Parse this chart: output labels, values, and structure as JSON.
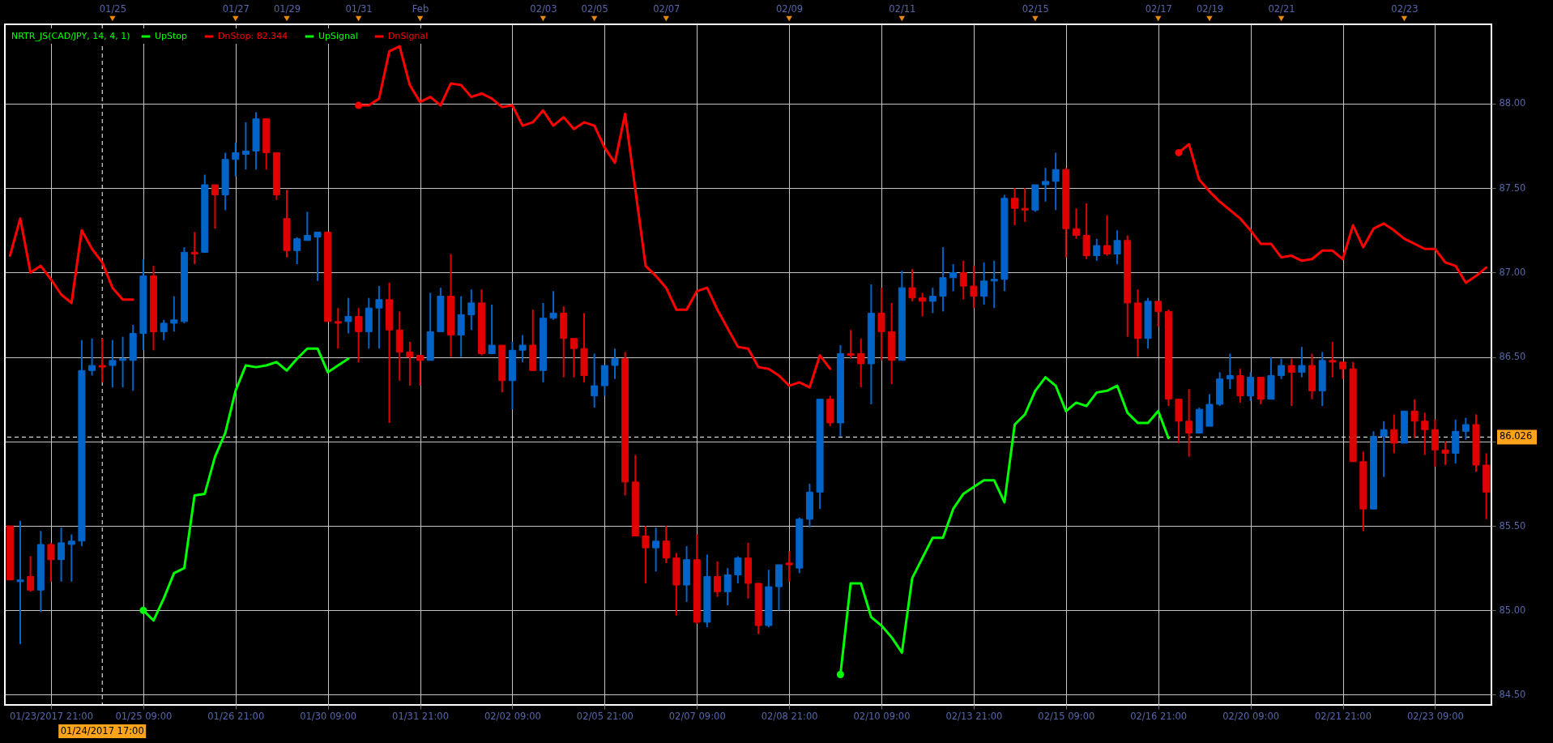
{
  "chart_data": [
    {
      "type": "candlestick",
      "legend_title": "NRTR_JS(CAD/JPY, 14, 4, 1)",
      "legend": "top left",
      "grid": true,
      "categories": [
        null,
        null,
        null,
        null,
        "01/23/2017 21:00",
        null,
        null,
        null,
        null,
        "01/24/2017 17:00",
        null,
        null,
        null,
        "01/25 09:00",
        null,
        null,
        null,
        null,
        null,
        null,
        null,
        null,
        "01/26 21:00",
        null,
        null,
        null,
        null,
        null,
        null,
        null,
        null,
        "01/30 09:00",
        null,
        null,
        null,
        null,
        null,
        null,
        null,
        null,
        "01/31 21:00",
        null,
        null,
        null,
        null,
        null,
        null,
        null,
        null,
        "02/02 09:00",
        null,
        null,
        null,
        null,
        null,
        null,
        null,
        null,
        "02/05 21:00",
        null,
        null,
        null,
        null,
        null,
        null,
        null,
        null,
        "02/07 09:00",
        null,
        null,
        null,
        null,
        null,
        null,
        null,
        null,
        "02/08 21:00",
        null,
        null,
        null,
        null,
        null,
        null,
        null,
        null,
        "02/10 09:00",
        null,
        null,
        null,
        null,
        null,
        null,
        null,
        null,
        "02/13 21:00",
        null,
        null,
        null,
        null,
        null,
        null,
        null,
        null,
        "02/15 09:00",
        null,
        null,
        null,
        null,
        null,
        null,
        null,
        null,
        "02/16 21:00",
        null,
        null,
        null,
        null,
        null,
        null,
        null,
        null,
        "02/20 09:00",
        null,
        null,
        null,
        null,
        null,
        null,
        null,
        null,
        "02/21 21:00",
        null,
        null,
        null,
        null,
        null,
        null,
        null,
        null,
        "02/23 09:00",
        null,
        null,
        null,
        null,
        null
      ],
      "ylim": [
        84.44,
        88.47
      ],
      "yticks": [
        {
          "value": 84.5,
          "label": "84.50"
        },
        {
          "value": 85,
          "label": "85.00"
        },
        {
          "value": 85.5,
          "label": "85.50"
        },
        {
          "value": 86,
          "label": null
        },
        {
          "value": 86.5,
          "label": "86.50"
        },
        {
          "value": 87,
          "label": "87.00"
        },
        {
          "value": 87.5,
          "label": "87.50"
        },
        {
          "value": 88,
          "label": "88.00"
        }
      ],
      "ohlc": [
        [
          85.5,
          85.5,
          85.18,
          85.18
        ],
        [
          85.17,
          85.53,
          84.8,
          85.18
        ],
        [
          85.2,
          85.32,
          85.11,
          85.12
        ],
        [
          85.12,
          85.47,
          84.99,
          85.39
        ],
        [
          85.39,
          85.4,
          85.17,
          85.3
        ],
        [
          85.3,
          85.49,
          85.17,
          85.4
        ],
        [
          85.39,
          85.45,
          85.17,
          85.41
        ],
        [
          85.41,
          86.6,
          85.38,
          86.42
        ],
        [
          86.42,
          86.61,
          86.39,
          86.45
        ],
        [
          86.45,
          86.61,
          86.35,
          86.44
        ],
        [
          86.45,
          86.6,
          86.32,
          86.48
        ],
        [
          86.48,
          86.62,
          86.32,
          86.49
        ],
        [
          86.48,
          86.69,
          86.3,
          86.64
        ],
        [
          86.64,
          87.08,
          86.54,
          86.98
        ],
        [
          86.98,
          87.04,
          86.54,
          86.65
        ],
        [
          86.65,
          86.72,
          86.6,
          86.7
        ],
        [
          86.7,
          86.86,
          86.65,
          86.72
        ],
        [
          86.71,
          87.15,
          86.7,
          87.12
        ],
        [
          87.12,
          87.24,
          87.05,
          87.11
        ],
        [
          87.12,
          87.58,
          87.12,
          87.52
        ],
        [
          87.52,
          87.52,
          87.26,
          87.46
        ],
        [
          87.46,
          87.71,
          87.37,
          87.67
        ],
        [
          87.67,
          87.77,
          87.57,
          87.71
        ],
        [
          87.7,
          87.89,
          87.61,
          87.72
        ],
        [
          87.72,
          87.95,
          87.61,
          87.91
        ],
        [
          87.91,
          87.91,
          87.61,
          87.71
        ],
        [
          87.71,
          87.71,
          87.43,
          87.46
        ],
        [
          87.32,
          87.49,
          87.09,
          87.13
        ],
        [
          87.13,
          87.21,
          87.05,
          87.2
        ],
        [
          87.19,
          87.36,
          87.19,
          87.22
        ],
        [
          87.21,
          87.24,
          86.95,
          87.24
        ],
        [
          87.24,
          87.24,
          86.71,
          86.71
        ],
        [
          86.71,
          86.79,
          86.55,
          86.7
        ],
        [
          86.71,
          86.85,
          86.64,
          86.74
        ],
        [
          86.74,
          86.79,
          86.47,
          86.65
        ],
        [
          86.65,
          86.85,
          86.55,
          86.79
        ],
        [
          86.79,
          86.92,
          86.55,
          86.84
        ],
        [
          86.84,
          86.94,
          86.11,
          86.66
        ],
        [
          86.66,
          86.77,
          86.36,
          86.53
        ],
        [
          86.53,
          86.59,
          86.33,
          86.5
        ],
        [
          86.51,
          86.51,
          86.33,
          86.48
        ],
        [
          86.48,
          86.88,
          86.48,
          86.65
        ],
        [
          86.65,
          86.91,
          86.65,
          86.86
        ],
        [
          86.86,
          87.11,
          86.5,
          86.63
        ],
        [
          86.63,
          86.86,
          86.5,
          86.75
        ],
        [
          86.75,
          86.9,
          86.66,
          86.82
        ],
        [
          86.82,
          86.9,
          86.51,
          86.52
        ],
        [
          86.52,
          86.81,
          86.52,
          86.57
        ],
        [
          86.57,
          86.57,
          86.29,
          86.36
        ],
        [
          86.36,
          86.59,
          86.19,
          86.54
        ],
        [
          86.54,
          86.63,
          86.47,
          86.57
        ],
        [
          86.57,
          86.78,
          86.42,
          86.42
        ],
        [
          86.42,
          86.82,
          86.35,
          86.73
        ],
        [
          86.73,
          86.89,
          86.72,
          86.76
        ],
        [
          86.76,
          86.8,
          86.38,
          86.61
        ],
        [
          86.61,
          86.61,
          86.38,
          86.55
        ],
        [
          86.55,
          86.76,
          86.35,
          86.39
        ],
        [
          86.27,
          86.52,
          86.2,
          86.33
        ],
        [
          86.33,
          86.45,
          86.27,
          86.45
        ],
        [
          86.45,
          86.55,
          86.37,
          86.49
        ],
        [
          86.49,
          86.53,
          85.68,
          85.76
        ],
        [
          85.76,
          85.92,
          85.44,
          85.44
        ],
        [
          85.44,
          85.5,
          85.16,
          85.37
        ],
        [
          85.37,
          85.49,
          85.23,
          85.41
        ],
        [
          85.41,
          85.5,
          85.28,
          85.31
        ],
        [
          85.31,
          85.34,
          84.97,
          85.15
        ],
        [
          85.15,
          85.38,
          85.05,
          85.3
        ],
        [
          85.3,
          85.45,
          84.92,
          84.93
        ],
        [
          84.93,
          85.33,
          84.9,
          85.2
        ],
        [
          85.2,
          85.29,
          85.08,
          85.11
        ],
        [
          85.11,
          85.25,
          85.03,
          85.21
        ],
        [
          85.21,
          85.32,
          85.16,
          85.31
        ],
        [
          85.31,
          85.4,
          85.07,
          85.16
        ],
        [
          85.16,
          85.16,
          84.86,
          84.91
        ],
        [
          84.91,
          85.24,
          84.9,
          85.14
        ],
        [
          85.14,
          85.27,
          85.0,
          85.27
        ],
        [
          85.28,
          85.35,
          85.17,
          85.27
        ],
        [
          85.25,
          85.55,
          85.22,
          85.54
        ],
        [
          85.54,
          85.75,
          85.49,
          85.7
        ],
        [
          85.7,
          86.25,
          85.6,
          86.25
        ],
        [
          86.25,
          86.27,
          86.09,
          86.11
        ],
        [
          86.11,
          86.57,
          86.03,
          86.52
        ],
        [
          86.52,
          86.66,
          86.49,
          86.51
        ],
        [
          86.52,
          86.61,
          86.32,
          86.46
        ],
        [
          86.46,
          86.93,
          86.22,
          86.76
        ],
        [
          86.76,
          86.91,
          86.48,
          86.65
        ],
        [
          86.65,
          86.82,
          86.34,
          86.48
        ],
        [
          86.48,
          87.01,
          86.48,
          86.91
        ],
        [
          86.91,
          87.02,
          86.83,
          86.85
        ],
        [
          86.85,
          86.88,
          86.74,
          86.83
        ],
        [
          86.83,
          86.91,
          86.76,
          86.86
        ],
        [
          86.86,
          87.15,
          86.77,
          86.97
        ],
        [
          86.97,
          87.05,
          86.89,
          87.0
        ],
        [
          87.0,
          87.07,
          86.84,
          86.92
        ],
        [
          86.92,
          87.04,
          86.79,
          86.86
        ],
        [
          86.86,
          87.06,
          86.81,
          86.95
        ],
        [
          86.95,
          87.07,
          86.79,
          86.96
        ],
        [
          86.96,
          87.46,
          86.89,
          87.44
        ],
        [
          87.44,
          87.5,
          87.28,
          87.38
        ],
        [
          87.38,
          87.5,
          87.3,
          87.37
        ],
        [
          87.37,
          87.52,
          87.36,
          87.52
        ],
        [
          87.52,
          87.62,
          87.42,
          87.54
        ],
        [
          87.54,
          87.71,
          87.37,
          87.61
        ],
        [
          87.61,
          87.62,
          87.09,
          87.26
        ],
        [
          87.26,
          87.38,
          87.2,
          87.22
        ],
        [
          87.22,
          87.41,
          87.08,
          87.1
        ],
        [
          87.1,
          87.2,
          87.07,
          87.16
        ],
        [
          87.16,
          87.34,
          87.1,
          87.11
        ],
        [
          87.11,
          87.25,
          87.05,
          87.19
        ],
        [
          87.19,
          87.22,
          86.62,
          86.82
        ],
        [
          86.82,
          86.9,
          86.5,
          86.61
        ],
        [
          86.61,
          86.85,
          86.55,
          86.83
        ],
        [
          86.83,
          86.83,
          86.68,
          86.77
        ],
        [
          86.77,
          86.78,
          86.21,
          86.25
        ],
        [
          86.25,
          86.25,
          85.99,
          86.12
        ],
        [
          86.12,
          86.31,
          85.91,
          86.05
        ],
        [
          86.05,
          86.2,
          86.05,
          86.19
        ],
        [
          86.09,
          86.28,
          86.09,
          86.22
        ],
        [
          86.22,
          86.41,
          86.21,
          86.37
        ],
        [
          86.37,
          86.52,
          86.31,
          86.39
        ],
        [
          86.39,
          86.43,
          86.23,
          86.27
        ],
        [
          86.27,
          86.41,
          86.24,
          86.38
        ],
        [
          86.38,
          86.38,
          86.22,
          86.25
        ],
        [
          86.25,
          86.5,
          86.25,
          86.39
        ],
        [
          86.39,
          86.49,
          86.37,
          86.45
        ],
        [
          86.45,
          86.49,
          86.21,
          86.41
        ],
        [
          86.41,
          86.56,
          86.38,
          86.45
        ],
        [
          86.45,
          86.52,
          86.25,
          86.3
        ],
        [
          86.3,
          86.53,
          86.21,
          86.48
        ],
        [
          86.48,
          86.59,
          86.38,
          86.47
        ],
        [
          86.47,
          86.47,
          86.37,
          86.43
        ],
        [
          86.43,
          86.47,
          85.88,
          85.88
        ],
        [
          85.88,
          85.94,
          85.47,
          85.6
        ],
        [
          85.6,
          86.06,
          85.6,
          86.03
        ],
        [
          86.03,
          86.12,
          85.79,
          86.07
        ],
        [
          86.07,
          86.16,
          85.93,
          85.99
        ],
        [
          85.99,
          86.18,
          85.99,
          86.18
        ],
        [
          86.18,
          86.25,
          86.02,
          86.12
        ],
        [
          86.12,
          86.17,
          85.92,
          86.07
        ],
        [
          86.07,
          86.13,
          85.85,
          85.95
        ],
        [
          85.95,
          86.0,
          85.86,
          85.93
        ],
        [
          85.93,
          86.13,
          85.87,
          86.06
        ],
        [
          86.06,
          86.14,
          86.01,
          86.1
        ],
        [
          86.1,
          86.16,
          85.82,
          85.86
        ],
        [
          85.86,
          85.93,
          85.54,
          85.7
        ]
      ],
      "colors": [
        "#e00000",
        "#0064c8",
        "#e00000",
        "#0064c8",
        "#e00000",
        "#0064c8",
        "#0064c8",
        "#0064c8",
        "#0064c8",
        "#e00000",
        "#0064c8",
        "#0064c8",
        "#0064c8",
        "#0064c8",
        "#e00000",
        "#0064c8",
        "#0064c8",
        "#0064c8",
        "#e00000",
        "#0064c8",
        "#e00000",
        "#0064c8",
        "#0064c8",
        "#0064c8",
        "#0064c8",
        "#e00000",
        "#e00000",
        "#e00000",
        "#0064c8",
        "#0064c8",
        "#0064c8",
        "#e00000",
        "#e00000",
        "#0064c8",
        "#e00000",
        "#0064c8",
        "#0064c8",
        "#e00000",
        "#e00000",
        "#e00000",
        "#e00000",
        "#0064c8",
        "#0064c8",
        "#e00000",
        "#0064c8",
        "#0064c8",
        "#e00000",
        "#0064c8",
        "#e00000",
        "#0064c8",
        "#0064c8",
        "#e00000",
        "#0064c8",
        "#0064c8",
        "#e00000",
        "#e00000",
        "#e00000",
        "#0064c8",
        "#0064c8",
        "#0064c8",
        "#e00000",
        "#e00000",
        "#e00000",
        "#0064c8",
        "#e00000",
        "#e00000",
        "#0064c8",
        "#e00000",
        "#0064c8",
        "#e00000",
        "#0064c8",
        "#0064c8",
        "#e00000",
        "#e00000",
        "#0064c8",
        "#0064c8",
        "#e00000",
        "#0064c8",
        "#0064c8",
        "#0064c8",
        "#e00000",
        "#0064c8",
        "#e00000",
        "#e00000",
        "#0064c8",
        "#e00000",
        "#e00000",
        "#0064c8",
        "#e00000",
        "#e00000",
        "#0064c8",
        "#0064c8",
        "#0064c8",
        "#e00000",
        "#e00000",
        "#0064c8",
        "#0064c8",
        "#0064c8",
        "#e00000",
        "#e00000",
        "#0064c8",
        "#0064c8",
        "#0064c8",
        "#e00000",
        "#e00000",
        "#e00000",
        "#0064c8",
        "#e00000",
        "#0064c8",
        "#e00000",
        "#e00000",
        "#0064c8",
        "#e00000",
        "#e00000",
        "#e00000",
        "#e00000",
        "#0064c8",
        "#0064c8",
        "#0064c8",
        "#0064c8",
        "#e00000",
        "#0064c8",
        "#e00000",
        "#0064c8",
        "#0064c8",
        "#e00000",
        "#0064c8",
        "#e00000",
        "#0064c8",
        "#e00000",
        "#e00000",
        "#e00000",
        "#e00000",
        "#0064c8",
        "#0064c8",
        "#e00000",
        "#0064c8",
        "#e00000",
        "#e00000",
        "#e00000",
        "#e00000",
        "#0064c8",
        "#0064c8",
        "#e00000",
        "#e00000"
      ],
      "series": [
        {
          "name": "UpStop",
          "type": "line",
          "color": "#00ff00",
          "values": [
            null,
            null,
            null,
            null,
            null,
            null,
            null,
            null,
            null,
            null,
            null,
            null,
            null,
            85.0,
            84.94,
            85.07,
            85.22,
            85.25,
            85.68,
            85.69,
            85.91,
            86.05,
            86.3,
            86.45,
            86.44,
            86.45,
            86.47,
            86.42,
            86.49,
            86.55,
            86.55,
            86.41,
            86.45,
            86.49,
            null,
            null,
            null,
            null,
            null,
            null,
            null,
            null,
            null,
            null,
            null,
            null,
            null,
            null,
            null,
            null,
            null,
            null,
            null,
            null,
            null,
            null,
            null,
            null,
            null,
            null,
            null,
            null,
            null,
            null,
            null,
            null,
            null,
            null,
            null,
            null,
            null,
            null,
            null,
            null,
            null,
            null,
            null,
            null,
            null,
            null,
            null,
            84.62,
            85.16,
            85.16,
            84.96,
            84.91,
            84.84,
            84.75,
            85.19,
            85.31,
            85.43,
            85.43,
            85.6,
            85.69,
            85.73,
            85.77,
            85.77,
            85.64,
            86.1,
            86.16,
            86.3,
            86.38,
            86.33,
            86.18,
            86.23,
            86.21,
            86.29,
            86.3,
            86.33,
            86.17,
            86.11,
            86.11,
            86.18,
            86.02,
            null,
            null,
            null,
            null,
            null,
            null,
            null,
            null,
            null,
            null,
            null,
            null,
            null,
            null,
            null,
            null,
            null,
            null,
            null,
            null,
            null,
            null,
            null,
            null,
            null,
            null,
            null,
            null,
            null,
            null,
            null
          ]
        },
        {
          "name": "DnStop: 82.344",
          "type": "line",
          "color": "#ff0000",
          "values": [
            87.1,
            87.32,
            87.0,
            87.04,
            86.96,
            86.87,
            86.82,
            87.25,
            87.14,
            87.06,
            86.91,
            86.84,
            86.84,
            null,
            null,
            null,
            null,
            null,
            null,
            null,
            null,
            null,
            null,
            null,
            null,
            null,
            null,
            null,
            null,
            null,
            null,
            null,
            null,
            null,
            87.99,
            87.99,
            88.03,
            88.31,
            88.34,
            88.11,
            88.01,
            88.04,
            87.99,
            88.12,
            88.11,
            88.04,
            88.06,
            88.03,
            87.98,
            87.99,
            87.87,
            87.89,
            87.96,
            87.87,
            87.92,
            87.85,
            87.89,
            87.87,
            87.74,
            87.65,
            87.94,
            87.49,
            87.04,
            86.98,
            86.91,
            86.78,
            86.78,
            86.89,
            86.91,
            86.78,
            86.67,
            86.56,
            86.55,
            86.44,
            86.43,
            86.39,
            86.33,
            86.35,
            86.32,
            86.51,
            86.43,
            null,
            null,
            null,
            null,
            null,
            null,
            null,
            null,
            null,
            null,
            null,
            null,
            null,
            null,
            null,
            null,
            null,
            null,
            null,
            null,
            null,
            null,
            null,
            null,
            null,
            null,
            null,
            null,
            null,
            null,
            null,
            null,
            null,
            87.71,
            87.76,
            87.55,
            87.48,
            87.42,
            87.37,
            87.32,
            87.25,
            87.17,
            87.17,
            87.09,
            87.1,
            87.07,
            87.08,
            87.13,
            87.13,
            87.08,
            87.28,
            87.15,
            87.26,
            87.29,
            87.25,
            87.2,
            87.17,
            87.14,
            87.14,
            87.06,
            87.04,
            86.94,
            86.98,
            87.03
          ]
        },
        {
          "name": "UpSignal",
          "type": "scatter",
          "color": "#00ff00",
          "marker": "circle",
          "values": [
            null,
            null,
            null,
            null,
            null,
            null,
            null,
            null,
            null,
            null,
            null,
            null,
            null,
            85.0,
            null,
            null,
            null,
            null,
            null,
            null,
            null,
            null,
            null,
            null,
            null,
            null,
            null,
            null,
            null,
            null,
            null,
            null,
            null,
            null,
            null,
            null,
            null,
            null,
            null,
            null,
            null,
            null,
            null,
            null,
            null,
            null,
            null,
            null,
            null,
            null,
            null,
            null,
            null,
            null,
            null,
            null,
            null,
            null,
            null,
            null,
            null,
            null,
            null,
            null,
            null,
            null,
            null,
            null,
            null,
            null,
            null,
            null,
            null,
            null,
            null,
            null,
            null,
            null,
            null,
            null,
            null,
            84.62,
            null,
            null,
            null,
            null,
            null,
            null,
            null,
            null,
            null,
            null,
            null,
            null,
            null,
            null,
            null,
            null,
            null,
            null,
            null,
            null,
            null,
            null,
            null,
            null,
            null,
            null,
            null,
            null,
            null,
            null,
            null,
            null,
            null,
            null,
            null,
            null,
            null,
            null,
            null,
            null,
            null,
            null,
            null,
            null,
            null,
            null,
            null,
            null,
            null,
            null,
            null,
            null,
            null,
            null,
            null,
            null,
            null,
            null,
            null,
            null,
            null,
            null,
            null
          ]
        },
        {
          "name": "DnSignal",
          "type": "scatter",
          "color": "#ff0000",
          "marker": "circle",
          "values": [
            null,
            null,
            null,
            null,
            null,
            null,
            null,
            null,
            null,
            null,
            null,
            null,
            null,
            null,
            null,
            null,
            null,
            null,
            null,
            null,
            null,
            null,
            null,
            null,
            null,
            null,
            null,
            null,
            null,
            null,
            null,
            null,
            null,
            null,
            87.99,
            null,
            null,
            null,
            null,
            null,
            null,
            null,
            null,
            null,
            null,
            null,
            null,
            null,
            null,
            null,
            null,
            null,
            null,
            null,
            null,
            null,
            null,
            null,
            null,
            null,
            null,
            null,
            null,
            null,
            null,
            null,
            null,
            null,
            null,
            null,
            null,
            null,
            null,
            null,
            null,
            null,
            null,
            null,
            null,
            null,
            null,
            null,
            null,
            null,
            null,
            null,
            null,
            null,
            null,
            null,
            null,
            null,
            null,
            null,
            null,
            null,
            null,
            null,
            null,
            null,
            null,
            null,
            null,
            null,
            null,
            null,
            null,
            null,
            null,
            null,
            null,
            null,
            null,
            null,
            87.71,
            null,
            null,
            null,
            null,
            null,
            null,
            null,
            null,
            null,
            null,
            null,
            null,
            null,
            null,
            null,
            null,
            null,
            null,
            null,
            null,
            null,
            null,
            null,
            null,
            null,
            null,
            null,
            null,
            null,
            null
          ]
        }
      ],
      "ref_lines": [
        {
          "axis": "y",
          "value": 86.026,
          "label": "86.026",
          "color": "#ffffff",
          "line_style": "dashed"
        },
        {
          "axis": "x",
          "value": "01/24/2017 17:00",
          "color": "#ffffff",
          "line_style": "dashed"
        }
      ]
    },
    {
      "type": "other",
      "categories": [
        null,
        null,
        null,
        null,
        null,
        null,
        null,
        null,
        null,
        null,
        "01/25",
        null,
        null,
        null,
        null,
        null,
        null,
        null,
        null,
        null,
        null,
        null,
        "01/27",
        null,
        null,
        null,
        null,
        "01/29",
        null,
        null,
        null,
        null,
        null,
        null,
        "01/31",
        null,
        null,
        null,
        null,
        null,
        "Feb",
        null,
        null,
        null,
        null,
        null,
        null,
        null,
        null,
        null,
        null,
        null,
        "02/03",
        null,
        null,
        null,
        null,
        "02/05",
        null,
        null,
        null,
        null,
        null,
        null,
        "02/07",
        null,
        null,
        null,
        null,
        null,
        null,
        null,
        null,
        null,
        null,
        null,
        "02/09",
        null,
        null,
        null,
        null,
        null,
        null,
        null,
        null,
        null,
        null,
        "02/11",
        null,
        null,
        null,
        null,
        null,
        null,
        null,
        null,
        null,
        null,
        null,
        null,
        "02/15",
        null,
        null,
        null,
        null,
        null,
        null,
        null,
        null,
        null,
        null,
        null,
        "02/17",
        null,
        null,
        null,
        null,
        "02/19",
        null,
        null,
        null,
        null,
        null,
        null,
        "02/21",
        null,
        null,
        null,
        null,
        null,
        null,
        null,
        null,
        null,
        null,
        null,
        "02/23",
        null,
        null,
        null,
        null,
        null,
        null,
        null,
        null
      ]
    }
  ]
}
